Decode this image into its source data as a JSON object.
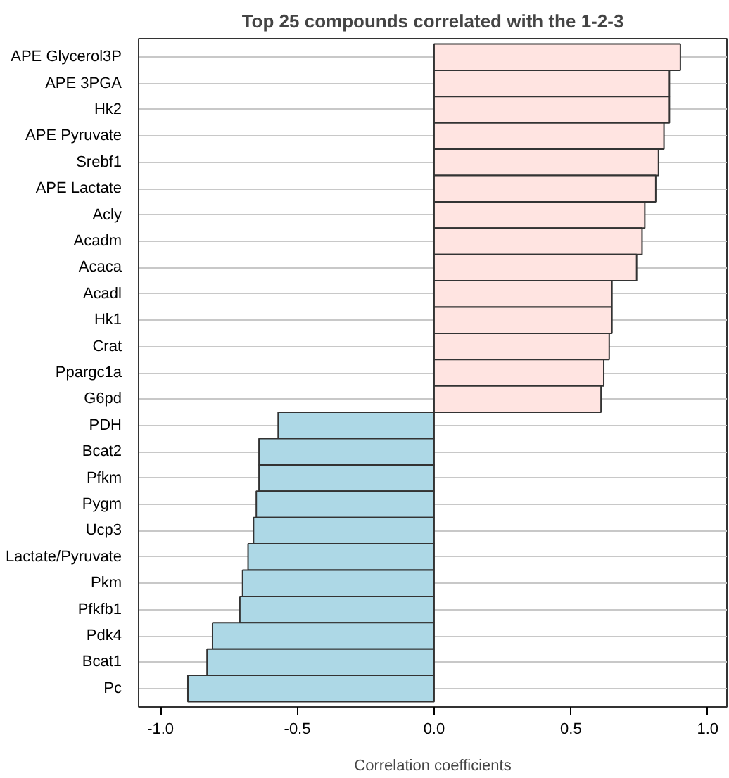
{
  "chart_data": {
    "type": "bar",
    "orientation": "horizontal",
    "title": "Top 25 compounds correlated with the 1-2-3",
    "xlabel": "Correlation coefficients",
    "categories": [
      "APE Glycerol3P",
      "APE 3PGA",
      "Hk2",
      "APE Pyruvate",
      "Srebf1",
      "APE Lactate",
      "Acly",
      "Acadm",
      "Acaca",
      "Acadl",
      "Hk1",
      "Crat",
      "Ppargc1a",
      "G6pd",
      "PDH",
      "Bcat2",
      "Pfkm",
      "Pygm",
      "Ucp3",
      "Lactate/Pyruvate",
      "Pkm",
      "Pfkfb1",
      "Pdk4",
      "Bcat1",
      "Pc"
    ],
    "values": [
      0.9,
      0.86,
      0.86,
      0.84,
      0.82,
      0.81,
      0.77,
      0.76,
      0.74,
      0.65,
      0.65,
      0.64,
      0.62,
      0.61,
      -0.57,
      -0.64,
      -0.64,
      -0.65,
      -0.66,
      -0.68,
      -0.7,
      -0.71,
      -0.81,
      -0.83,
      -0.9
    ],
    "colors": [
      "#ffe4e1",
      "#ffe4e1",
      "#ffe4e1",
      "#ffe4e1",
      "#ffe4e1",
      "#ffe4e1",
      "#ffe4e1",
      "#ffe4e1",
      "#ffe4e1",
      "#ffe4e1",
      "#ffe4e1",
      "#ffe4e1",
      "#ffe4e1",
      "#ffe4e1",
      "#add8e6",
      "#add8e6",
      "#add8e6",
      "#add8e6",
      "#add8e6",
      "#add8e6",
      "#add8e6",
      "#add8e6",
      "#add8e6",
      "#add8e6",
      "#add8e6"
    ],
    "xlim": [
      -1.08,
      1.07
    ],
    "xticks": [
      {
        "value": -1,
        "label": "-1.0"
      },
      {
        "value": -0.5,
        "label": "-0.5"
      },
      {
        "value": 0,
        "label": "0.0"
      },
      {
        "value": 0.5,
        "label": "0.5"
      },
      {
        "value": 1,
        "label": "1.0"
      }
    ],
    "grid": "y"
  }
}
